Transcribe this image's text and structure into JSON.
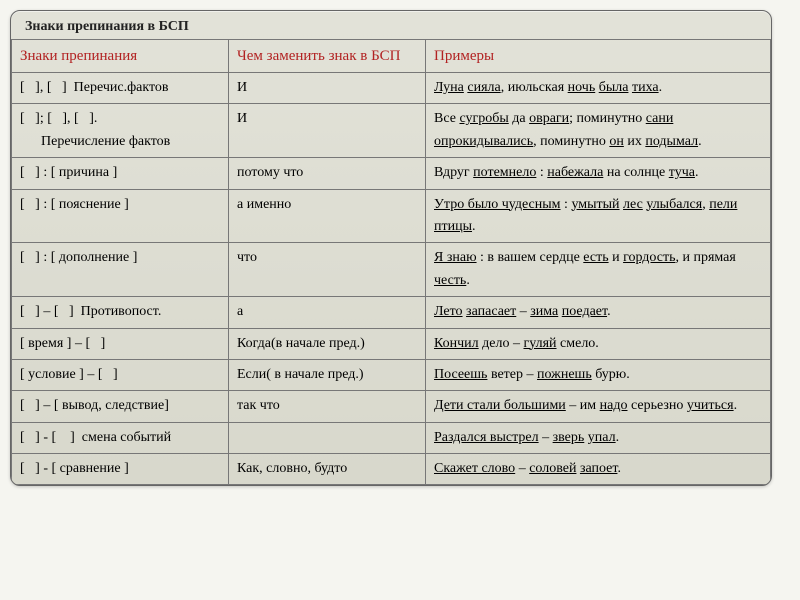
{
  "title": "Знаки препинания в БСП",
  "headers": {
    "c1": "Знаки препинания",
    "c2": "Чем заменить знак в БСП",
    "c3": "Примеры"
  },
  "rows": [
    {
      "c1": "[   ], [   ]  Перечис.фактов",
      "c2": "И",
      "ex": [
        [
          "Луна",
          1
        ],
        [
          " ",
          0
        ],
        [
          "сияла",
          1
        ],
        [
          ", июльская ",
          0
        ],
        [
          "ночь",
          1
        ],
        [
          " ",
          0
        ],
        [
          "была",
          1
        ],
        [
          " ",
          0
        ],
        [
          "тиха",
          1
        ],
        [
          ".",
          0
        ]
      ]
    },
    {
      "c1": "[   ]; [   ], [   ].\n      Перечисление фактов",
      "c2": "И",
      "ex": [
        [
          "Все ",
          0
        ],
        [
          "сугробы",
          1
        ],
        [
          " да ",
          0
        ],
        [
          "овраги",
          1
        ],
        [
          "; поминутно ",
          0
        ],
        [
          "сани",
          1
        ],
        [
          " ",
          0
        ],
        [
          "опрокидывались",
          1
        ],
        [
          ", поминутно ",
          0
        ],
        [
          "он",
          1
        ],
        [
          " их ",
          0
        ],
        [
          "подымал",
          1
        ],
        [
          ".",
          0
        ]
      ]
    },
    {
      "c1": "[   ] : [ причина ]",
      "c2": "потому что",
      "ex": [
        [
          "Вдруг ",
          0
        ],
        [
          "потемнело",
          1
        ],
        [
          " : ",
          0
        ],
        [
          "набежала",
          1
        ],
        [
          " на солнце ",
          0
        ],
        [
          "туча",
          1
        ],
        [
          ".",
          0
        ]
      ]
    },
    {
      "c1": "[   ] : [ пояснение ]",
      "c2": "а именно",
      "ex": [
        [
          "Утро было чудесным",
          1
        ],
        [
          " : ",
          0
        ],
        [
          "умытый",
          1
        ],
        [
          " ",
          0
        ],
        [
          "лес",
          1
        ],
        [
          " ",
          0
        ],
        [
          "улыбался",
          1
        ],
        [
          ", ",
          0
        ],
        [
          "пели",
          1
        ],
        [
          " ",
          0
        ],
        [
          "птицы",
          1
        ],
        [
          ".",
          0
        ]
      ]
    },
    {
      "c1": "[   ] : [ дополнение ]",
      "c2": "что",
      "ex": [
        [
          "Я знаю",
          1
        ],
        [
          " : в вашем сердце ",
          0
        ],
        [
          "есть",
          1
        ],
        [
          " и ",
          0
        ],
        [
          "гордость",
          1
        ],
        [
          ", и прямая ",
          0
        ],
        [
          "честь",
          1
        ],
        [
          ".",
          0
        ]
      ]
    },
    {
      "c1": "[   ] – [   ]  Противопост.",
      "c2": "а",
      "ex": [
        [
          "Лето",
          1
        ],
        [
          " ",
          0
        ],
        [
          "запасает",
          1
        ],
        [
          " – ",
          0
        ],
        [
          "зима",
          1
        ],
        [
          " ",
          0
        ],
        [
          "поедает",
          1
        ],
        [
          ".",
          0
        ]
      ]
    },
    {
      "c1": "[ время ] – [   ]",
      "c2": "Когда(в начале пред.)",
      "ex": [
        [
          "Кончил",
          1
        ],
        [
          " дело – ",
          0
        ],
        [
          "гуляй",
          1
        ],
        [
          " смело.",
          0
        ]
      ]
    },
    {
      "c1": "[ условие ] – [   ]",
      "c2": "Если( в начале пред.)",
      "ex": [
        [
          "Посеешь",
          1
        ],
        [
          " ветер – ",
          0
        ],
        [
          "пожнешь",
          1
        ],
        [
          " бурю.",
          0
        ]
      ]
    },
    {
      "c1": "[   ] – [ вывод, следствие]",
      "c2": "так что",
      "ex": [
        [
          "Дети стали большими",
          1
        ],
        [
          " – им ",
          0
        ],
        [
          "надо",
          1
        ],
        [
          " серьезно ",
          0
        ],
        [
          "учиться",
          1
        ],
        [
          ".",
          0
        ]
      ]
    },
    {
      "c1": "[   ] - [    ]  смена событий",
      "c2": "",
      "ex": [
        [
          "Раздался выстрел",
          1
        ],
        [
          " – ",
          0
        ],
        [
          "зверь",
          1
        ],
        [
          " ",
          0
        ],
        [
          "упал",
          1
        ],
        [
          ".",
          0
        ]
      ]
    },
    {
      "c1": "[   ] - [ сравнение ]",
      "c2": "Как, словно, будто",
      "ex": [
        [
          "Скажет слово",
          1
        ],
        [
          " – ",
          0
        ],
        [
          "соловей",
          1
        ],
        [
          " ",
          0
        ],
        [
          "запоет",
          1
        ],
        [
          ".",
          0
        ]
      ]
    }
  ]
}
